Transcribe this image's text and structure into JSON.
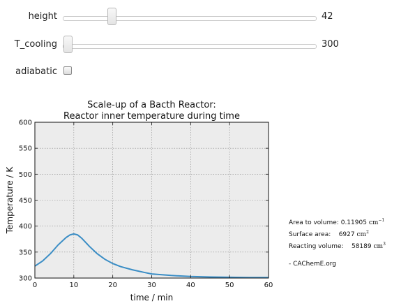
{
  "controls": {
    "height": {
      "label": "height",
      "value": "42",
      "fraction": 0.18
    },
    "t_cooling": {
      "label": "T_cooling",
      "value": "300",
      "fraction": 0.0
    },
    "adiabatic": {
      "label": "adiabatic",
      "checked": false
    }
  },
  "chart_data": {
    "type": "line",
    "title": "Scale-up of a Bacth Reactor:",
    "subtitle": "Reactor inner temperature during time",
    "xlabel": "time / min",
    "ylabel": "Temperature / K",
    "xlim": [
      0,
      60
    ],
    "ylim": [
      300,
      600
    ],
    "xticks": [
      "0",
      "10",
      "20",
      "30",
      "40",
      "50",
      "60"
    ],
    "yticks": [
      "300",
      "350",
      "400",
      "450",
      "500",
      "550",
      "600"
    ],
    "grid": true,
    "series": [
      {
        "color": "#3a8dc5",
        "x": [
          0,
          2,
          4,
          6,
          8,
          9,
          10,
          11,
          12,
          14,
          16,
          18,
          20,
          22,
          25,
          28,
          30,
          35,
          40,
          45,
          50,
          55,
          60
        ],
        "y": [
          323,
          333,
          347,
          364,
          378,
          383,
          385,
          383,
          377,
          361,
          347,
          336,
          328,
          322,
          316,
          311,
          308,
          305,
          303,
          302,
          301.5,
          301,
          301
        ]
      }
    ]
  },
  "info": {
    "area_label": "Area to volume:",
    "area_value": "0.11905",
    "area_unit": "cm",
    "area_exp": "−1",
    "surface_label": "Surface area:",
    "surface_value": "6927",
    "surface_unit": "cm",
    "surface_exp": "2",
    "volume_label": "Reacting volume:",
    "volume_value": "58189",
    "volume_unit": "cm",
    "volume_exp": "3",
    "credit": "- CAChemE.org"
  }
}
